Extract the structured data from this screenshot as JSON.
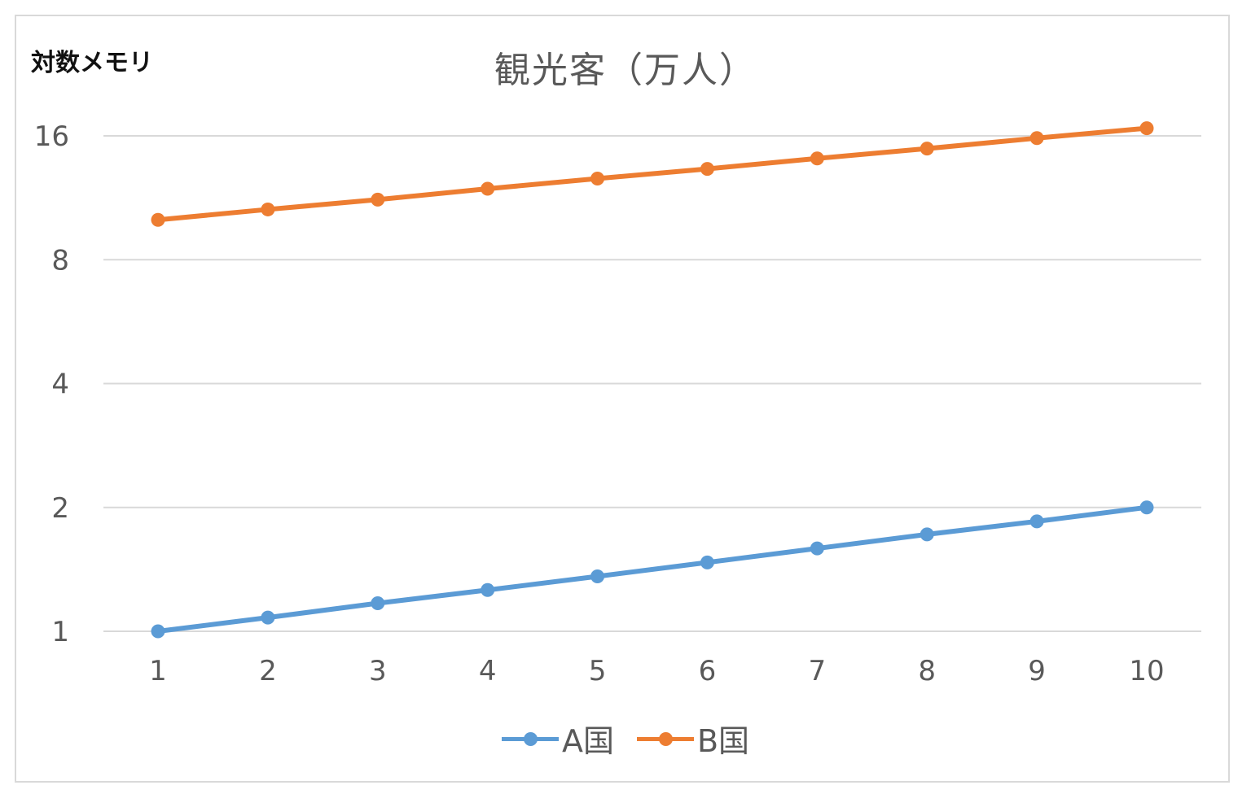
{
  "chart_data": {
    "type": "line",
    "title": "観光客（万人）",
    "axis_note": "対数メモリ",
    "y_scale": "log2",
    "ylim": [
      1,
      16
    ],
    "y_ticks": [
      "1",
      "2",
      "4",
      "8",
      "16"
    ],
    "y_tick_values": [
      1,
      2,
      4,
      8,
      16
    ],
    "categories": [
      "1",
      "2",
      "3",
      "4",
      "5",
      "6",
      "7",
      "8",
      "9",
      "10"
    ],
    "x": [
      1,
      2,
      3,
      4,
      5,
      6,
      7,
      8,
      9,
      10
    ],
    "series": [
      {
        "name": "A国",
        "color": "#5b9bd5",
        "values": [
          1.0,
          1.08,
          1.17,
          1.26,
          1.36,
          1.47,
          1.59,
          1.72,
          1.85,
          2.0
        ]
      },
      {
        "name": "B国",
        "color": "#ed7d31",
        "values": [
          10.0,
          10.6,
          11.2,
          11.9,
          12.6,
          13.3,
          14.1,
          14.9,
          15.8,
          16.7
        ]
      }
    ],
    "grid": true,
    "legend_position": "bottom"
  }
}
